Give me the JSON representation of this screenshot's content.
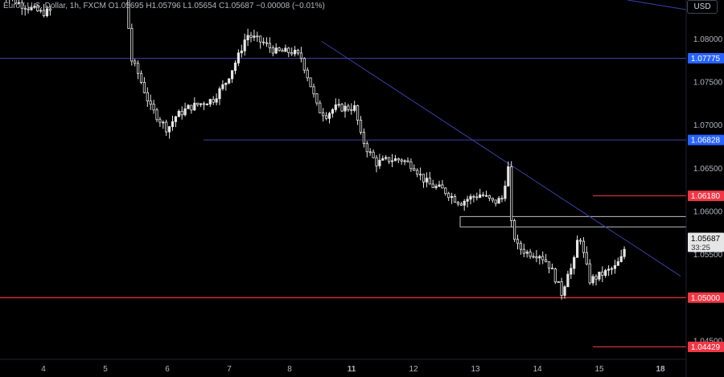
{
  "legend": {
    "symbol": "Euro / U.S. Dollar, 1h, FXCM",
    "o": "O",
    "o_val": "1.05695",
    "h": "H",
    "h_val": "1.05796",
    "l": "L",
    "l_val": "1.05654",
    "c": "C",
    "c_val": "1.05687",
    "change": "−0.00008 (−0.01%)"
  },
  "currency_button": "USD",
  "colors": {
    "background": "#000000",
    "candle": "#e6e6e6",
    "trendline": "#3a3fa8",
    "level_blue": "#2862ff",
    "level_red": "#f23645",
    "axis_text": "#b2b5be"
  },
  "chart_data": {
    "type": "candlestick",
    "symbol": "EURUSD",
    "timeframe": "1h",
    "ylim": [
      1.0408,
      1.0845
    ],
    "y_ticks": [
      "1.08000",
      "1.07500",
      "1.07000",
      "1.06500",
      "1.06000",
      "1.05500",
      "1.04500"
    ],
    "x_ticks": [
      "4",
      "5",
      "6",
      "7",
      "8",
      "11",
      "12",
      "13",
      "14",
      "15",
      "18"
    ],
    "price_labels": [
      {
        "value": 1.07775,
        "text": "1.07775",
        "kind": "blue"
      },
      {
        "value": 1.06828,
        "text": "1.06828",
        "kind": "blue"
      },
      {
        "value": 1.0618,
        "text": "1.06180",
        "kind": "red"
      },
      {
        "value": 1.05687,
        "text": "1.05687",
        "kind": "current",
        "sub": "33:25"
      },
      {
        "value": 1.05,
        "text": "1.05000",
        "kind": "red"
      },
      {
        "value": 1.04429,
        "text": "1.04429",
        "kind": "red"
      }
    ],
    "horizontal_lines": [
      {
        "value": 1.07775,
        "kind": "blue",
        "span": "full"
      },
      {
        "value": 1.06828,
        "kind": "blue",
        "span": "from-day-6"
      },
      {
        "value": 1.0618,
        "kind": "red",
        "span": "right-short"
      },
      {
        "value": 1.05,
        "kind": "red",
        "span": "full"
      },
      {
        "value": 1.04429,
        "kind": "red",
        "span": "right-short"
      }
    ],
    "zone": {
      "top": 1.0594,
      "bottom": 1.0582,
      "label": ""
    },
    "trendline": {
      "start": {
        "day": "8",
        "price": 1.0797
      },
      "end": {
        "day": "15+",
        "price": 1.0525
      }
    },
    "path": [
      [
        0.0,
        1.0855
      ],
      [
        0.5,
        1.084
      ],
      [
        1.0,
        1.083
      ],
      [
        3.0,
        1.085
      ],
      [
        3.05,
        1.0845
      ],
      [
        3.1,
        1.078
      ],
      [
        3.3,
        1.076
      ],
      [
        3.6,
        1.072
      ],
      [
        4.0,
        1.0695
      ],
      [
        4.2,
        1.071
      ],
      [
        4.5,
        1.072
      ],
      [
        4.8,
        1.0725
      ],
      [
        5.1,
        1.073
      ],
      [
        5.4,
        1.075
      ],
      [
        5.7,
        1.078
      ],
      [
        5.9,
        1.0805
      ],
      [
        6.1,
        1.08
      ],
      [
        6.3,
        1.0795
      ],
      [
        6.6,
        1.0785
      ],
      [
        7.0,
        1.0785
      ],
      [
        7.2,
        1.0778
      ],
      [
        7.4,
        1.075
      ],
      [
        7.6,
        1.0718
      ],
      [
        7.8,
        1.0712
      ],
      [
        8.0,
        1.072
      ],
      [
        8.3,
        1.072
      ],
      [
        8.5,
        1.072
      ],
      [
        8.6,
        1.069
      ],
      [
        8.8,
        1.067
      ],
      [
        9.0,
        1.0656
      ],
      [
        9.3,
        1.066
      ],
      [
        9.6,
        1.066
      ],
      [
        9.9,
        1.0652
      ],
      [
        10.1,
        1.0638
      ],
      [
        10.3,
        1.063
      ],
      [
        10.6,
        1.0625
      ],
      [
        10.8,
        1.0617
      ],
      [
        11.0,
        1.061
      ],
      [
        11.2,
        1.0615
      ],
      [
        11.5,
        1.062
      ],
      [
        11.8,
        1.061
      ],
      [
        12.0,
        1.0615
      ],
      [
        12.1,
        1.064
      ],
      [
        12.15,
        1.065
      ],
      [
        12.2,
        1.059
      ],
      [
        12.35,
        1.056
      ],
      [
        12.6,
        1.0552
      ],
      [
        12.9,
        1.055
      ],
      [
        13.1,
        1.054
      ],
      [
        13.3,
        1.052
      ],
      [
        13.45,
        1.0502
      ],
      [
        13.55,
        1.053
      ],
      [
        13.7,
        1.0535
      ],
      [
        13.8,
        1.0565
      ],
      [
        13.85,
        1.0575
      ],
      [
        13.95,
        1.055
      ],
      [
        14.1,
        1.052
      ],
      [
        14.3,
        1.0525
      ],
      [
        14.5,
        1.053
      ],
      [
        14.7,
        1.0535
      ],
      [
        14.85,
        1.0545
      ],
      [
        14.95,
        1.056
      ],
      [
        15.0,
        1.05687
      ]
    ]
  }
}
